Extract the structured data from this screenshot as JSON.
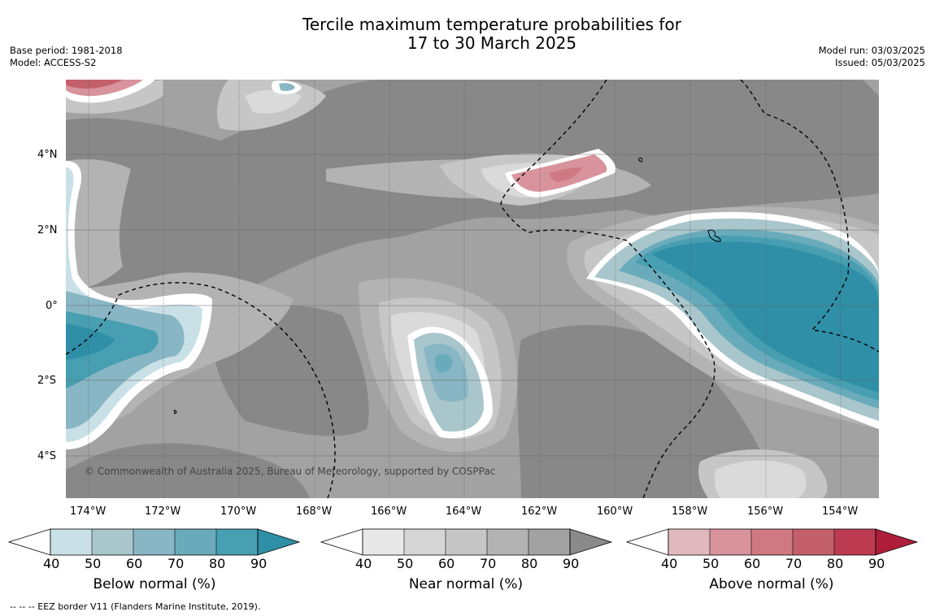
{
  "title": {
    "line1": "Tercile maximum temperature probabilities for",
    "line2": "17 to 30 March 2025"
  },
  "meta_left": {
    "base_period": "Base period: 1981-2018",
    "model": "Model: ACCESS-S2"
  },
  "meta_right": {
    "model_run": "Model run: 03/03/2025",
    "issued": "Issued: 05/03/2025"
  },
  "map": {
    "region": "Central Pacific (around Kiribati)",
    "copyright": "© Commonwealth of Australia 2025, Bureau of Meteorology, supported by COSPPac",
    "lon_ticks": [
      "174°W",
      "172°W",
      "170°W",
      "168°W",
      "166°W",
      "164°W",
      "162°W",
      "160°W",
      "158°W",
      "156°W",
      "154°W"
    ],
    "lat_ticks": [
      "4°N",
      "2°N",
      "0°",
      "2°S",
      "4°S"
    ],
    "lon_range_deg": [
      -174.6,
      -152.9
    ],
    "lat_range_deg": [
      -5.1,
      6.0
    ],
    "dominant_category": "Near normal (gray) over most of the domain",
    "features": [
      {
        "category": "Below normal",
        "location": "north-east of Kiritimati / Line Islands, ~0-2°N, 158-153°W",
        "max_probability_pct": 90
      },
      {
        "category": "Below normal",
        "location": "western edge, ~1°S, 174°W",
        "max_probability_pct": 80
      },
      {
        "category": "Below normal",
        "location": "isolated patch ~2°S, 164°W",
        "max_probability_pct": 70
      },
      {
        "category": "Above normal",
        "location": "~3°N, 161°W",
        "max_probability_pct": 60
      },
      {
        "category": "Above normal",
        "location": "north-west corner ~6°N, 174°W",
        "max_probability_pct": 70
      }
    ]
  },
  "colorbars": [
    {
      "title": "Below normal (%)",
      "labels": [
        "40",
        "50",
        "60",
        "70",
        "80",
        "90"
      ],
      "colors": [
        "#c9e1e6",
        "#a8c6cb",
        "#88b6c4",
        "#69abbb",
        "#479fb1",
        "#2f8fa6"
      ]
    },
    {
      "title": "Near normal (%)",
      "labels": [
        "40",
        "50",
        "60",
        "70",
        "80",
        "90"
      ],
      "colors": [
        "#e8e8e8",
        "#d6d6d6",
        "#c6c6c6",
        "#b3b3b3",
        "#a2a2a2",
        "#8a8a8a"
      ]
    },
    {
      "title": "Above normal (%)",
      "labels": [
        "40",
        "50",
        "60",
        "70",
        "80",
        "90"
      ],
      "colors": [
        "#e2b8bf",
        "#d8939c",
        "#cf7982",
        "#c4606b",
        "#bc3b51",
        "#ae1e3a"
      ]
    }
  ],
  "footer": "-- -- -- EEZ border V11 (Flanders Marine Institute, 2019)."
}
